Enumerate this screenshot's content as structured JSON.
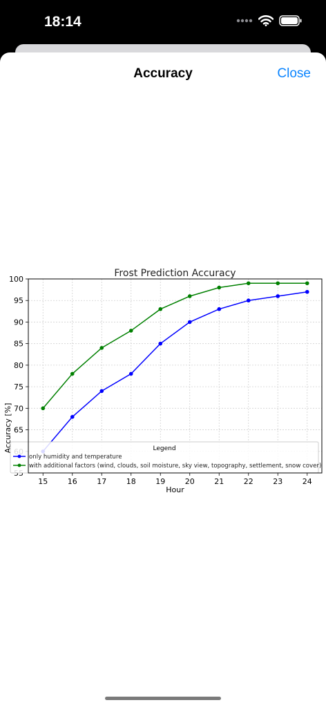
{
  "status": {
    "time": "18:14"
  },
  "nav": {
    "title": "Accuracy",
    "close_label": "Close"
  },
  "chart_data": {
    "type": "line",
    "title": "Frost Prediction Accuracy",
    "xlabel": "Hour",
    "ylabel": "Accuracy [%]",
    "x": [
      15,
      16,
      17,
      18,
      19,
      20,
      21,
      22,
      23,
      24
    ],
    "xlim": [
      14.5,
      24.5
    ],
    "ylim": [
      55,
      100
    ],
    "yticks": [
      55,
      60,
      65,
      70,
      75,
      80,
      85,
      90,
      95,
      100
    ],
    "grid": true,
    "legend_title": "Legend",
    "legend_position": "bottom",
    "series": [
      {
        "name": "only humidity and temperature",
        "color": "#0000ff",
        "values": [
          60,
          68,
          74,
          78,
          85,
          90,
          93,
          95,
          96,
          97
        ]
      },
      {
        "name": "with additional factors (wind, clouds, soil moisture, sky view, topography, settlement, snow cover)",
        "color": "#008000",
        "values": [
          70,
          78,
          84,
          88,
          93,
          96,
          98,
          99,
          99,
          99
        ]
      }
    ]
  }
}
